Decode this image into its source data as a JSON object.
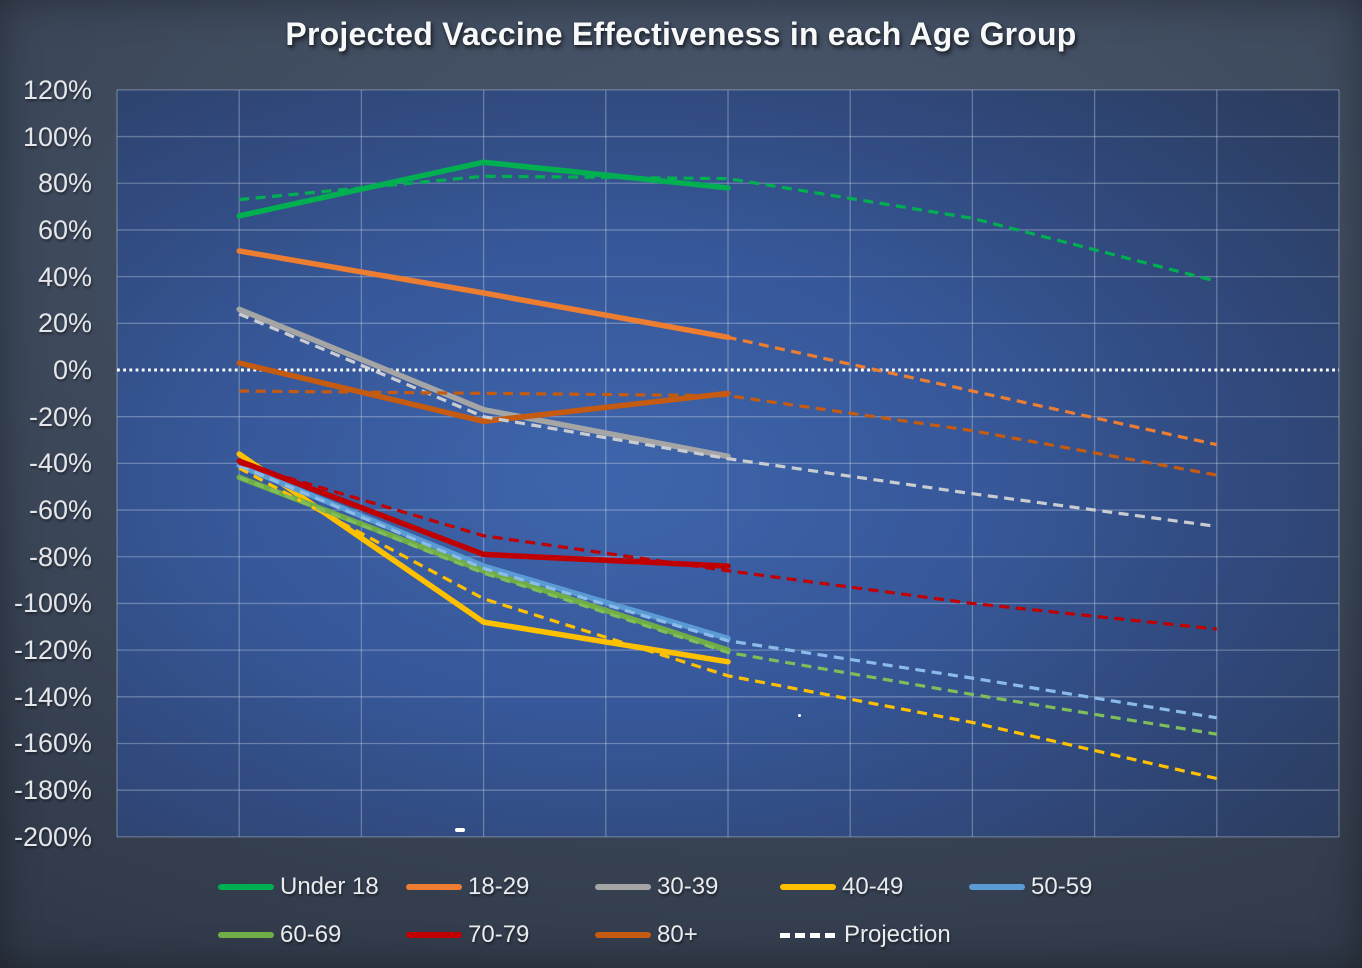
{
  "chart": {
    "title": "Projected Vaccine Effectiveness in each Age Group"
  },
  "chart_data": {
    "type": "line",
    "title": "Projected Vaccine Effectiveness in each Age Group",
    "xlabel": "",
    "ylabel": "",
    "x_axis": {
      "labels": [],
      "num_points": 5,
      "gridline_intervals": 10
    },
    "y_axis": {
      "min": -200,
      "max": 120,
      "step": 20,
      "unit": "%",
      "tick_labels": [
        "120%",
        "100%",
        "80%",
        "60%",
        "40%",
        "20%",
        "0%",
        "-20%",
        "-40%",
        "-60%",
        "-80%",
        "-100%",
        "-120%",
        "-140%",
        "-160%",
        "-180%",
        "-200%"
      ]
    },
    "grid": "on",
    "zero_line": {
      "value": 0,
      "style": "dotted",
      "color": "#FFFFFF"
    },
    "series": [
      {
        "name": "Under 18",
        "color": "#00B050",
        "actual": [
          66,
          89,
          78
        ],
        "projection": [
          73,
          83,
          82,
          65,
          38
        ],
        "projection_color": "#00B050"
      },
      {
        "name": "18-29",
        "color": "#ED7D31",
        "actual": [
          51,
          33,
          14
        ],
        "projection": [
          51,
          33,
          14,
          -9,
          -32
        ],
        "projection_color": "#ED7D31"
      },
      {
        "name": "30-39",
        "color": "#A5A5A5",
        "actual": [
          26,
          -17,
          -37
        ],
        "projection": [
          24,
          -20,
          -38,
          -53,
          -67
        ],
        "projection_color": "#C9CDD2"
      },
      {
        "name": "40-49",
        "color": "#FFC000",
        "actual": [
          -36,
          -108,
          -125
        ],
        "projection": [
          -42,
          -98,
          -131,
          -151,
          -175
        ],
        "projection_color": "#FFC000"
      },
      {
        "name": "50-59",
        "color": "#5B9BD5",
        "actual": [
          -41,
          -84,
          -115
        ],
        "projection": [
          -41,
          -85,
          -116,
          -132,
          -149
        ],
        "projection_color": "#8BBBE8"
      },
      {
        "name": "60-69",
        "color": "#70AD47",
        "actual": [
          -46,
          -86,
          -120
        ],
        "projection": [
          -46,
          -87,
          -121,
          -139,
          -156
        ],
        "projection_color": "#7FBE59"
      },
      {
        "name": "70-79",
        "color": "#C00000",
        "actual": [
          -39,
          -79,
          -84
        ],
        "projection": [
          -40,
          -71,
          -86,
          -100,
          -111
        ],
        "projection_color": "#C00000"
      },
      {
        "name": "80+",
        "color": "#C55A11",
        "actual": [
          3,
          -22,
          -10
        ],
        "projection": [
          -9,
          -10,
          -11,
          -26,
          -45
        ],
        "projection_color": "#C55A11"
      }
    ],
    "legend": {
      "position": "bottom",
      "items": [
        {
          "label": "Under 18",
          "color": "#00B050",
          "style": "solid"
        },
        {
          "label": "18-29",
          "color": "#ED7D31",
          "style": "solid"
        },
        {
          "label": "30-39",
          "color": "#A5A5A5",
          "style": "solid"
        },
        {
          "label": "40-49",
          "color": "#FFC000",
          "style": "solid"
        },
        {
          "label": "50-59",
          "color": "#5B9BD5",
          "style": "solid"
        },
        {
          "label": "60-69",
          "color": "#70AD47",
          "style": "solid"
        },
        {
          "label": "70-79",
          "color": "#C00000",
          "style": "solid"
        },
        {
          "label": "80+",
          "color": "#C55A11",
          "style": "solid"
        },
        {
          "label": "Projection",
          "color": "#FFFFFF",
          "style": "dashed"
        }
      ]
    },
    "colors": {
      "plot_bg_center": "#3E65AC",
      "plot_bg_edge": "#2B3B5D",
      "outer_bg": "#3a4657",
      "gridline": "rgba(210,220,235,0.35)",
      "tick_text": "#E4E6EA",
      "title_text": "#F7F8F9"
    }
  }
}
